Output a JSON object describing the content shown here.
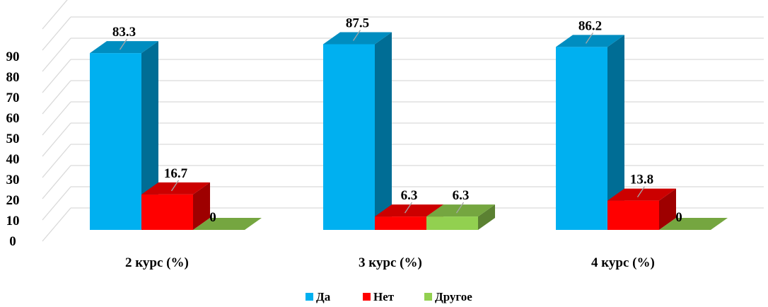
{
  "chart_data": {
    "type": "bar",
    "categories": [
      "2 курс (%)",
      "3 курс (%)",
      "4 курс (%)"
    ],
    "series": [
      {
        "name": "Да",
        "values": [
          83.3,
          87.5,
          86.2
        ],
        "labels": [
          "83.3",
          "87.5",
          "86.2"
        ],
        "color": "#00B0F0"
      },
      {
        "name": "Нет",
        "values": [
          16.7,
          6.3,
          13.8
        ],
        "labels": [
          "16.7",
          "6.3",
          "13.8"
        ],
        "color": "#FF0000"
      },
      {
        "name": "Другое",
        "values": [
          0,
          6.3,
          0
        ],
        "labels": [
          "0",
          "6.3",
          "0"
        ],
        "color": "#92D050"
      }
    ],
    "yticks": [
      "0",
      "10",
      "20",
      "30",
      "40",
      "50",
      "60",
      "70",
      "80",
      "90"
    ],
    "ylim": [
      0,
      100
    ],
    "grid": true,
    "style": "3d",
    "legend_position": "bottom"
  }
}
